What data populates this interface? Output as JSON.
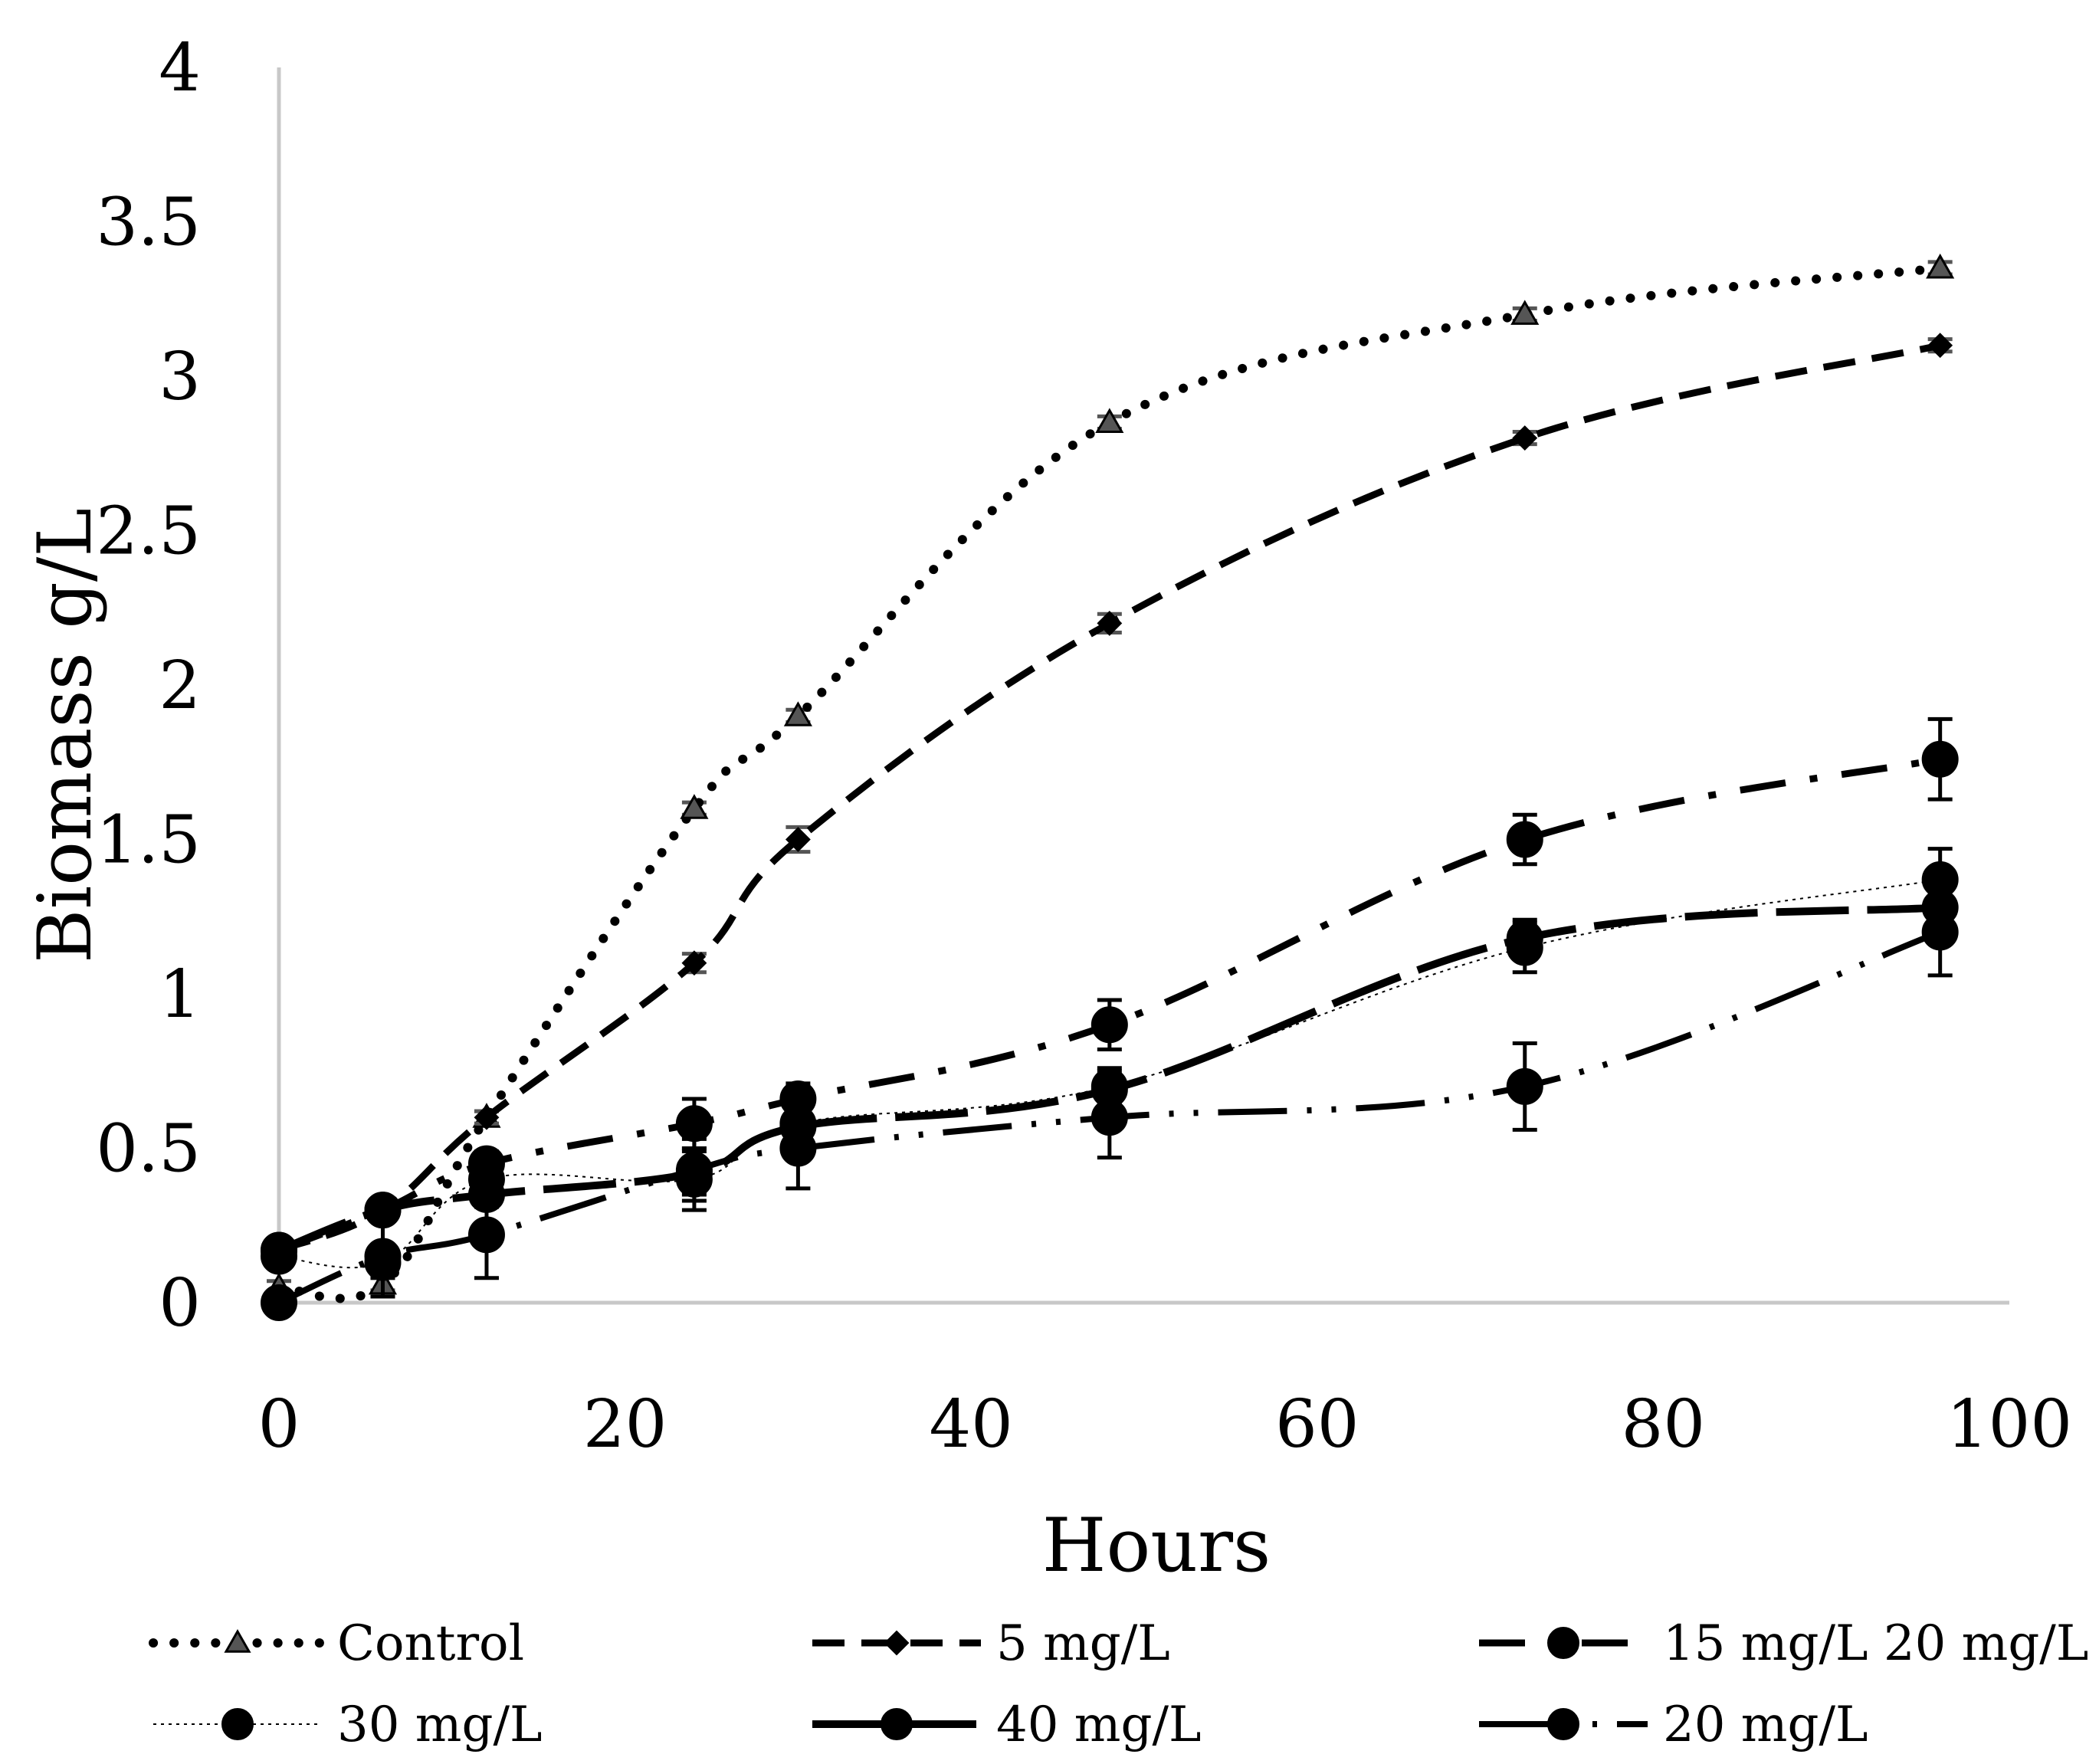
{
  "chart_data": {
    "type": "line",
    "title": "",
    "xlabel": "Hours",
    "ylabel": "Biomass g/L",
    "xlim": [
      0,
      100
    ],
    "ylim": [
      0,
      4
    ],
    "xticks": [
      "0",
      "20",
      "40",
      "60",
      "80",
      "100"
    ],
    "yticks": [
      "0",
      "0.5",
      "1",
      "1.5",
      "2",
      "2.5",
      "3",
      "3.5",
      "4"
    ],
    "grid": false,
    "legend_position": "bottom",
    "series": [
      {
        "name": "Control",
        "marker": "triangle",
        "style": "dotted",
        "x": [
          0,
          6,
          12,
          24,
          30,
          48,
          72,
          96
        ],
        "y": [
          0.05,
          0.06,
          0.6,
          1.6,
          1.9,
          2.85,
          3.2,
          3.35
        ],
        "err": [
          0.02,
          0.02,
          0.02,
          0.02,
          0.02,
          0.02,
          0.02,
          0.02
        ]
      },
      {
        "name": "5 mg/L",
        "marker": "diamond",
        "style": "dashed",
        "x": [
          0,
          6,
          12,
          24,
          30,
          48,
          72,
          96
        ],
        "y": [
          0.17,
          0.3,
          0.6,
          1.1,
          1.5,
          2.2,
          2.8,
          3.1
        ],
        "err": [
          0.02,
          0.02,
          0.02,
          0.03,
          0.04,
          0.03,
          0.02,
          0.02
        ]
      },
      {
        "name": "15 mg/L 20 mg/L",
        "marker": "circle",
        "style": "dash-dot",
        "x": [
          0,
          6,
          12,
          24,
          30,
          48,
          72,
          96
        ],
        "y": [
          0.17,
          0.3,
          0.45,
          0.58,
          0.66,
          0.9,
          1.5,
          1.76
        ],
        "err": [
          0.02,
          0.02,
          0.04,
          0.08,
          0.05,
          0.08,
          0.08,
          0.13
        ]
      },
      {
        "name": "30 mg/L",
        "marker": "circle",
        "style": "thin-dotted",
        "x": [
          0,
          6,
          12,
          24,
          30,
          48,
          72,
          96
        ],
        "y": [
          0.15,
          0.13,
          0.4,
          0.4,
          0.58,
          0.7,
          1.15,
          1.37
        ],
        "err": [
          0.02,
          0.05,
          0.06,
          0.1,
          0.06,
          0.06,
          0.08,
          0.1
        ]
      },
      {
        "name": "40 mg/L",
        "marker": "circle",
        "style": "long-dash",
        "x": [
          0,
          6,
          12,
          24,
          30,
          48,
          72,
          96
        ],
        "y": [
          0.17,
          0.3,
          0.35,
          0.42,
          0.57,
          0.69,
          1.18,
          1.28
        ],
        "err": [
          0.02,
          0.02,
          0.04,
          0.07,
          0.06,
          0.06,
          0.06,
          0.1
        ]
      },
      {
        "name": "20 mg/L",
        "marker": "circle",
        "style": "long-dash-dot-dot",
        "x": [
          0,
          6,
          12,
          24,
          30,
          48,
          72,
          96
        ],
        "y": [
          0.0,
          0.15,
          0.22,
          0.43,
          0.5,
          0.6,
          0.7,
          1.2
        ],
        "err": [
          0.02,
          0.13,
          0.14,
          0.1,
          0.13,
          0.13,
          0.14,
          0.14
        ]
      }
    ]
  }
}
